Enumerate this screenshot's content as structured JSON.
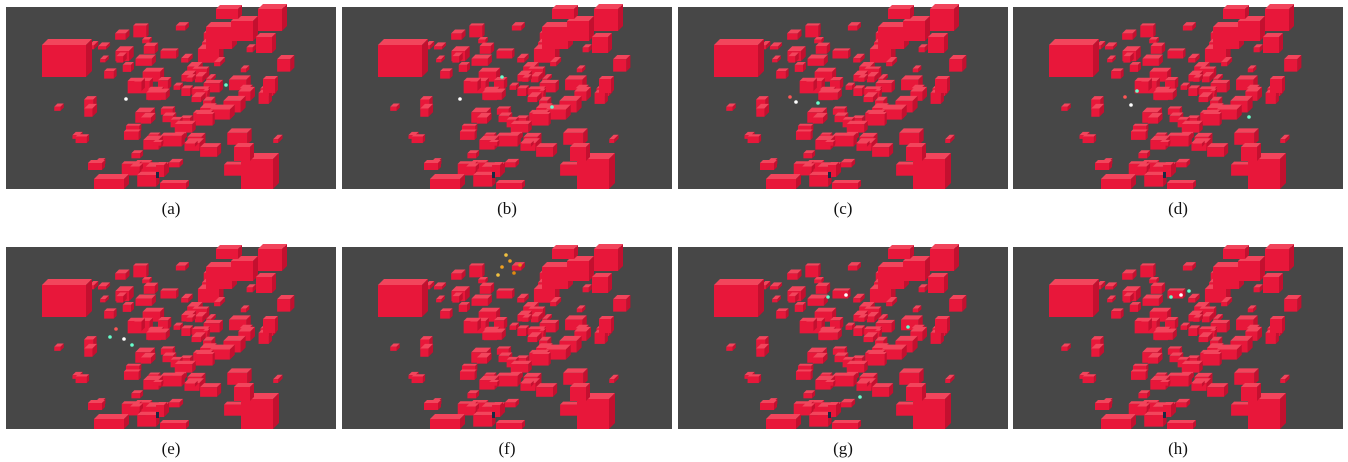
{
  "figure": {
    "panels": [
      {
        "caption": "(a)"
      },
      {
        "caption": "(b)"
      },
      {
        "caption": "(c)"
      },
      {
        "caption": "(d)"
      },
      {
        "caption": "(e)"
      },
      {
        "caption": "(f)"
      },
      {
        "caption": "(g)"
      },
      {
        "caption": "(h)"
      }
    ]
  }
}
